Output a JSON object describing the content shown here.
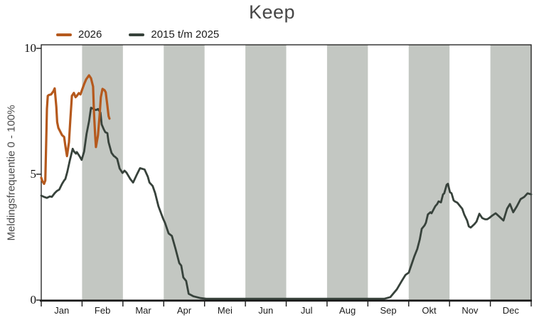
{
  "title": "Keep",
  "y_axis": {
    "label": "Meldingsfrequentie 0 - 100%",
    "ticks": [
      "0",
      "5",
      "10"
    ],
    "tick_values": [
      0,
      5,
      10
    ]
  },
  "x_axis": {
    "months": [
      "Jan",
      "Feb",
      "Mar",
      "Apr",
      "Mei",
      "Jun",
      "Jul",
      "Aug",
      "Sep",
      "Okt",
      "Nov",
      "Dec"
    ]
  },
  "legend": {
    "items": [
      {
        "label": "2026",
        "color": "#b5591d"
      },
      {
        "label": "2015 t/m 2025",
        "color": "#37423b"
      }
    ]
  },
  "colors": {
    "band": "#c3c7c2",
    "axis": "#1a1a1a",
    "title": "#474747",
    "background": "#ffffff"
  },
  "chart_data": {
    "type": "line",
    "title": "Keep",
    "xlabel": "",
    "ylabel": "Meldingsfrequentie 0 - 100%",
    "ylim": [
      0,
      10
    ],
    "x_unit": "months, 0 = start of Jan, 12 = end of Dec",
    "grid": "off",
    "banded_months": [
      "Feb",
      "Apr",
      "Jun",
      "Aug",
      "Okt",
      "Dec"
    ],
    "legend_position": "top-left",
    "series": [
      {
        "name": "2026",
        "color": "#b5591d",
        "points": [
          [
            0,
            4.86
          ],
          [
            0.03,
            4.72
          ],
          [
            0.07,
            4.62
          ],
          [
            0.1,
            4.75
          ],
          [
            0.12,
            6.2
          ],
          [
            0.14,
            7.6
          ],
          [
            0.16,
            8.11
          ],
          [
            0.19,
            8.15
          ],
          [
            0.24,
            8.17
          ],
          [
            0.3,
            8.3
          ],
          [
            0.33,
            8.41
          ],
          [
            0.37,
            7.68
          ],
          [
            0.39,
            7.07
          ],
          [
            0.42,
            6.84
          ],
          [
            0.51,
            6.55
          ],
          [
            0.56,
            6.48
          ],
          [
            0.59,
            6.13
          ],
          [
            0.63,
            5.72
          ],
          [
            0.68,
            6.27
          ],
          [
            0.71,
            7.12
          ],
          [
            0.75,
            8.11
          ],
          [
            0.8,
            8.23
          ],
          [
            0.84,
            8.06
          ],
          [
            0.87,
            8.11
          ],
          [
            0.92,
            8.22
          ],
          [
            0.96,
            8.17
          ],
          [
            1.05,
            8.58
          ],
          [
            1.1,
            8.77
          ],
          [
            1.17,
            8.93
          ],
          [
            1.22,
            8.81
          ],
          [
            1.27,
            8.48
          ],
          [
            1.29,
            7.49
          ],
          [
            1.32,
            6.55
          ],
          [
            1.34,
            6.08
          ],
          [
            1.39,
            6.55
          ],
          [
            1.43,
            7.35
          ],
          [
            1.46,
            8.06
          ],
          [
            1.5,
            8.39
          ],
          [
            1.55,
            8.34
          ],
          [
            1.58,
            8.25
          ],
          [
            1.62,
            7.73
          ],
          [
            1.65,
            7.31
          ],
          [
            1.67,
            7.21
          ]
        ]
      },
      {
        "name": "2015 t/m 2025",
        "color": "#37423b",
        "points": [
          [
            0,
            4.15
          ],
          [
            0.07,
            4.1
          ],
          [
            0.14,
            4.06
          ],
          [
            0.21,
            4.12
          ],
          [
            0.26,
            4.1
          ],
          [
            0.33,
            4.25
          ],
          [
            0.38,
            4.33
          ],
          [
            0.44,
            4.39
          ],
          [
            0.51,
            4.62
          ],
          [
            0.56,
            4.75
          ],
          [
            0.59,
            4.81
          ],
          [
            0.64,
            5.1
          ],
          [
            0.7,
            5.55
          ],
          [
            0.77,
            6.01
          ],
          [
            0.8,
            5.91
          ],
          [
            0.85,
            5.82
          ],
          [
            0.87,
            5.88
          ],
          [
            0.94,
            5.71
          ],
          [
            0.99,
            5.57
          ],
          [
            1.05,
            5.9
          ],
          [
            1.11,
            6.6
          ],
          [
            1.17,
            7.1
          ],
          [
            1.22,
            7.64
          ],
          [
            1.29,
            7.58
          ],
          [
            1.34,
            7.55
          ],
          [
            1.39,
            7.59
          ],
          [
            1.45,
            7.45
          ],
          [
            1.48,
            6.98
          ],
          [
            1.53,
            6.79
          ],
          [
            1.57,
            6.67
          ],
          [
            1.62,
            6.63
          ],
          [
            1.65,
            6.27
          ],
          [
            1.72,
            5.85
          ],
          [
            1.78,
            5.72
          ],
          [
            1.81,
            5.69
          ],
          [
            1.86,
            5.61
          ],
          [
            1.92,
            5.23
          ],
          [
            1.99,
            5.05
          ],
          [
            2.04,
            5.14
          ],
          [
            2.09,
            5.06
          ],
          [
            2.18,
            4.81
          ],
          [
            2.25,
            4.67
          ],
          [
            2.33,
            4.95
          ],
          [
            2.42,
            5.24
          ],
          [
            2.53,
            5.19
          ],
          [
            2.61,
            4.9
          ],
          [
            2.65,
            4.67
          ],
          [
            2.73,
            4.53
          ],
          [
            2.79,
            4.25
          ],
          [
            2.87,
            3.73
          ],
          [
            2.98,
            3.25
          ],
          [
            3.03,
            3.07
          ],
          [
            3.12,
            2.65
          ],
          [
            3.2,
            2.55
          ],
          [
            3.29,
            2.03
          ],
          [
            3.38,
            1.47
          ],
          [
            3.43,
            1.37
          ],
          [
            3.48,
            0.9
          ],
          [
            3.55,
            0.76
          ],
          [
            3.61,
            0.25
          ],
          [
            3.73,
            0.15
          ],
          [
            3.9,
            0.08
          ],
          [
            4.04,
            0.05
          ],
          [
            8.4,
            0.05
          ],
          [
            8.55,
            0.12
          ],
          [
            8.71,
            0.43
          ],
          [
            8.83,
            0.76
          ],
          [
            8.92,
            1.0
          ],
          [
            9.0,
            1.09
          ],
          [
            9.06,
            1.37
          ],
          [
            9.14,
            1.75
          ],
          [
            9.21,
            2.03
          ],
          [
            9.27,
            2.41
          ],
          [
            9.32,
            2.83
          ],
          [
            9.39,
            2.97
          ],
          [
            9.42,
            3.07
          ],
          [
            9.47,
            3.4
          ],
          [
            9.53,
            3.49
          ],
          [
            9.56,
            3.45
          ],
          [
            9.65,
            3.73
          ],
          [
            9.7,
            3.82
          ],
          [
            9.73,
            3.92
          ],
          [
            9.79,
            3.88
          ],
          [
            9.84,
            4.2
          ],
          [
            9.87,
            4.24
          ],
          [
            9.93,
            4.58
          ],
          [
            9.96,
            4.62
          ],
          [
            10.01,
            4.29
          ],
          [
            10.05,
            4.24
          ],
          [
            10.1,
            3.96
          ],
          [
            10.13,
            3.92
          ],
          [
            10.19,
            3.87
          ],
          [
            10.26,
            3.73
          ],
          [
            10.31,
            3.63
          ],
          [
            10.36,
            3.4
          ],
          [
            10.43,
            3.16
          ],
          [
            10.47,
            2.93
          ],
          [
            10.52,
            2.88
          ],
          [
            10.61,
            3.02
          ],
          [
            10.66,
            3.12
          ],
          [
            10.73,
            3.43
          ],
          [
            10.8,
            3.26
          ],
          [
            10.87,
            3.21
          ],
          [
            10.92,
            3.21
          ],
          [
            10.97,
            3.26
          ],
          [
            11.04,
            3.35
          ],
          [
            11.13,
            3.45
          ],
          [
            11.23,
            3.3
          ],
          [
            11.32,
            3.16
          ],
          [
            11.41,
            3.63
          ],
          [
            11.48,
            3.82
          ],
          [
            11.56,
            3.49
          ],
          [
            11.65,
            3.73
          ],
          [
            11.74,
            4.01
          ],
          [
            11.83,
            4.1
          ],
          [
            11.91,
            4.24
          ],
          [
            12.0,
            4.2
          ]
        ]
      }
    ]
  }
}
